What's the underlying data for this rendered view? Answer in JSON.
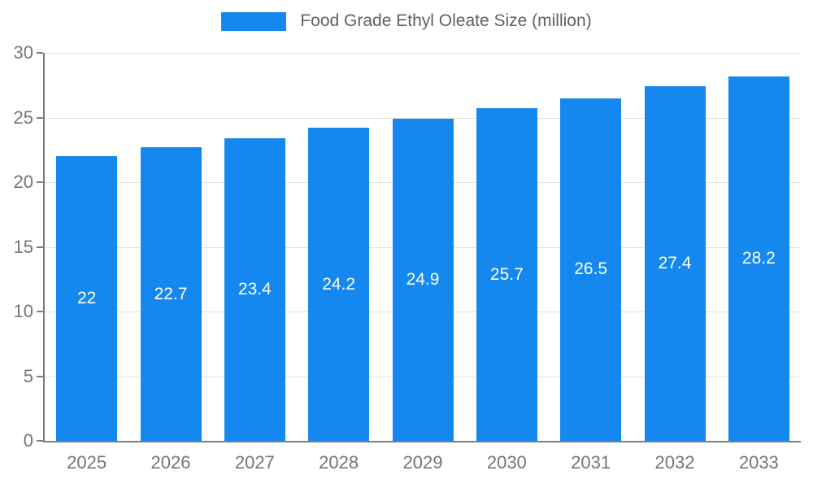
{
  "chart_data": {
    "type": "bar",
    "title": "Food Grade Ethyl Oleate Size (million)",
    "categories": [
      "2025",
      "2026",
      "2027",
      "2028",
      "2029",
      "2030",
      "2031",
      "2032",
      "2033"
    ],
    "values": [
      22,
      22.7,
      23.4,
      24.2,
      24.9,
      25.7,
      26.5,
      27.4,
      28.2
    ],
    "value_labels": [
      "22",
      "22.7",
      "23.4",
      "24.2",
      "24.9",
      "25.7",
      "26.5",
      "27.4",
      "28.2"
    ],
    "ylim": [
      0,
      30
    ],
    "yticks": [
      0,
      5,
      10,
      15,
      20,
      25,
      30
    ],
    "grid": true,
    "legend_position": "top-center",
    "bar_color": "#1588f0",
    "label_color": "#ffffff",
    "axis_color": "#7d7d7d",
    "tick_label_color": "#757575",
    "grid_color": "#e0e0e0",
    "title_color": "#616161"
  }
}
